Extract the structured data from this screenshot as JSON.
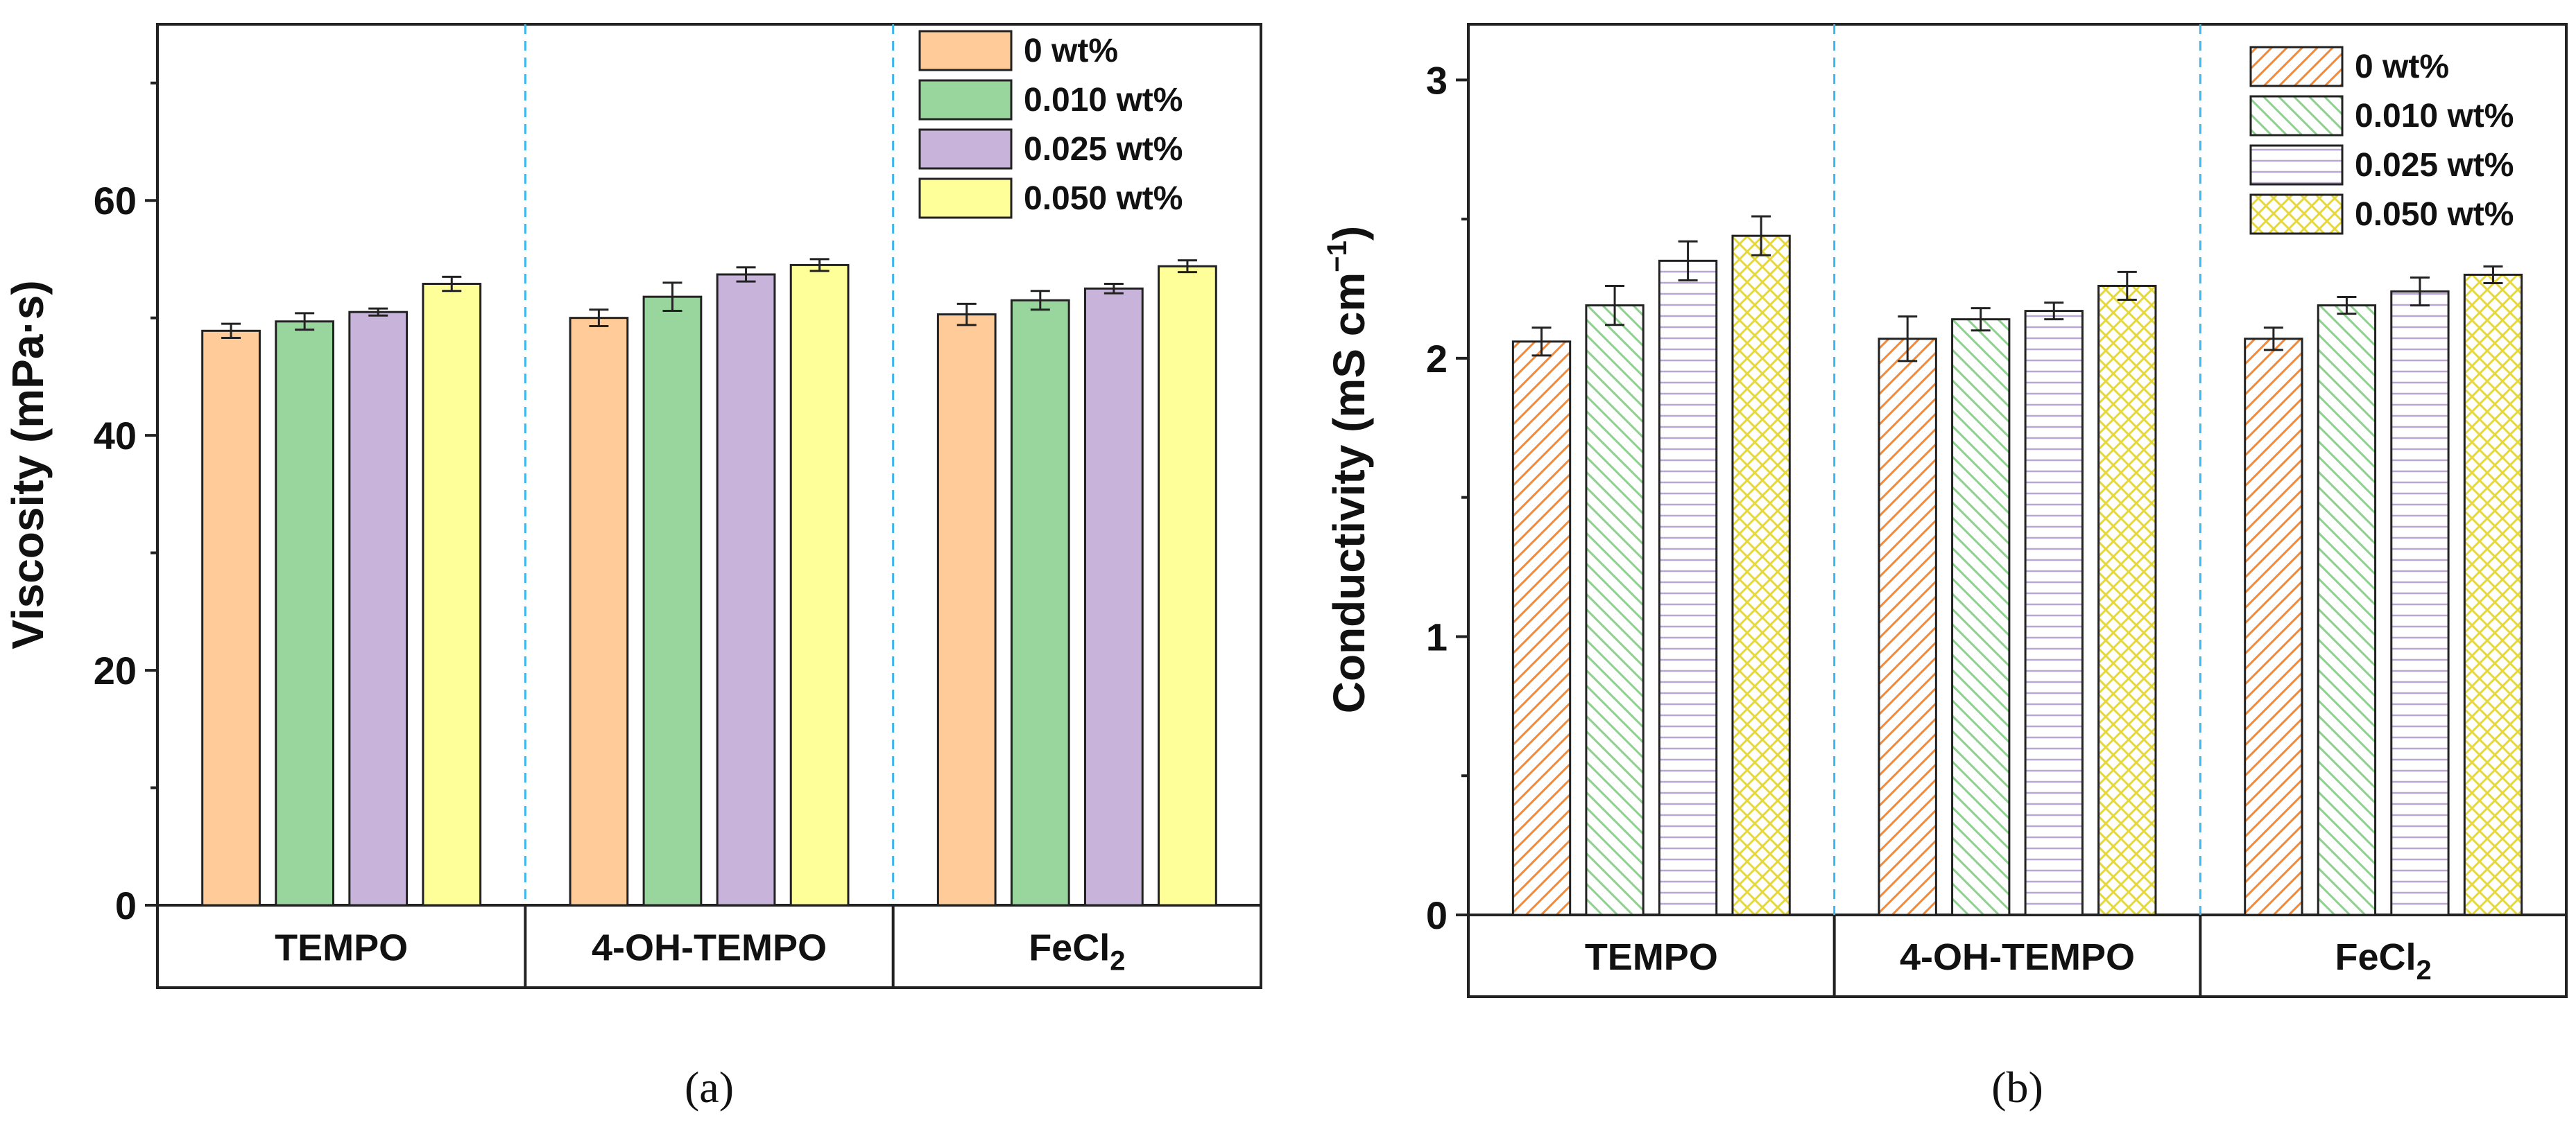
{
  "chart_data": [
    {
      "panel_label": "(a)",
      "type": "bar",
      "style": "filled",
      "ylabel": "Viscosity (mPa·s)",
      "ylim": [
        0,
        75
      ],
      "yticks": [
        0,
        20,
        40,
        60
      ],
      "categories": [
        {
          "main": "TEMPO",
          "sub": ""
        },
        {
          "main": "4-OH-TEMPO",
          "sub": ""
        },
        {
          "main": "FeCl",
          "sub": "2"
        }
      ],
      "legend_position": "top-right",
      "series": [
        {
          "name": "0 wt%",
          "color": "#FFCC99",
          "values": [
            48.9,
            50.0,
            50.3
          ],
          "errors": [
            0.6,
            0.7,
            0.9
          ]
        },
        {
          "name": "0.010 wt%",
          "color": "#99D69E",
          "values": [
            49.7,
            51.8,
            51.5
          ],
          "errors": [
            0.7,
            1.2,
            0.8
          ]
        },
        {
          "name": "0.025 wt%",
          "color": "#C8B4DB",
          "values": [
            50.5,
            53.7,
            52.5
          ],
          "errors": [
            0.3,
            0.6,
            0.4
          ]
        },
        {
          "name": "0.050 wt%",
          "color": "#FFFF99",
          "values": [
            52.9,
            54.5,
            54.4
          ],
          "errors": [
            0.6,
            0.5,
            0.5
          ]
        }
      ]
    },
    {
      "panel_label": "(b)",
      "type": "bar",
      "style": "hatched",
      "ylabel": "Conductivity (mS cm",
      "ylabel_sup": "−1",
      "ylabel_end": ")",
      "ylim": [
        0,
        3.2
      ],
      "yticks": [
        0,
        1,
        2,
        3
      ],
      "categories": [
        {
          "main": "TEMPO",
          "sub": ""
        },
        {
          "main": "4-OH-TEMPO",
          "sub": ""
        },
        {
          "main": "FeCl",
          "sub": "2"
        }
      ],
      "legend_position": "top-right",
      "series": [
        {
          "name": "0 wt%",
          "color": "#F08A3C",
          "hatch": "diag-up",
          "values": [
            2.06,
            2.07,
            2.07
          ],
          "errors": [
            0.05,
            0.08,
            0.04
          ]
        },
        {
          "name": "0.010 wt%",
          "color": "#8FD08F",
          "hatch": "diag-down",
          "values": [
            2.19,
            2.14,
            2.19
          ],
          "errors": [
            0.07,
            0.04,
            0.03
          ]
        },
        {
          "name": "0.025 wt%",
          "color": "#B8A6D6",
          "hatch": "horizontal",
          "values": [
            2.35,
            2.17,
            2.24
          ],
          "errors": [
            0.07,
            0.03,
            0.05
          ]
        },
        {
          "name": "0.050 wt%",
          "color": "#E6D83A",
          "hatch": "cross",
          "values": [
            2.44,
            2.26,
            2.3
          ],
          "errors": [
            0.07,
            0.05,
            0.03
          ]
        }
      ]
    }
  ]
}
